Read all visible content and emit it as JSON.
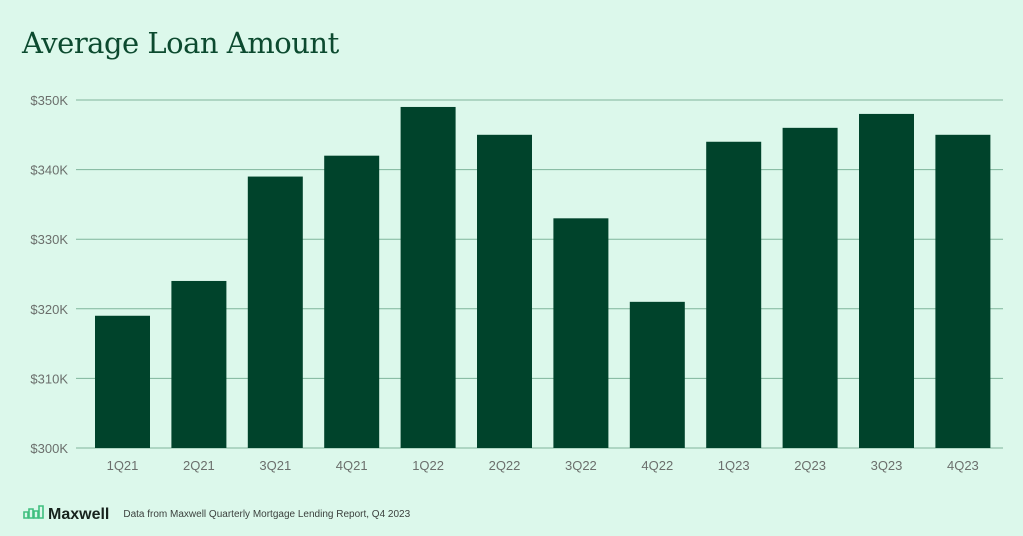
{
  "chart_data": {
    "type": "bar",
    "title": "Average Loan Amount",
    "xlabel": "",
    "ylabel": "",
    "categories": [
      "1Q21",
      "2Q21",
      "3Q21",
      "4Q21",
      "1Q22",
      "2Q22",
      "3Q22",
      "4Q22",
      "1Q23",
      "2Q23",
      "3Q23",
      "4Q23"
    ],
    "values": [
      319,
      324,
      339,
      342,
      349,
      345,
      333,
      321,
      344,
      346,
      348,
      345
    ],
    "unit": "thousand USD",
    "ylim": [
      300,
      350
    ],
    "yticks": [
      300,
      310,
      320,
      330,
      340,
      350
    ],
    "ytick_labels": [
      "$300K",
      "$310K",
      "$320K",
      "$330K",
      "$340K",
      "$350K"
    ],
    "grid": true,
    "bar_color": "#00432b",
    "grid_color": "#7fb59b"
  },
  "footer": {
    "brand": "Maxwell",
    "source": "Data from Maxwell Quarterly Mortgage Lending Report, Q4 2023",
    "logo_icon": "bar-chart-logo-icon"
  }
}
